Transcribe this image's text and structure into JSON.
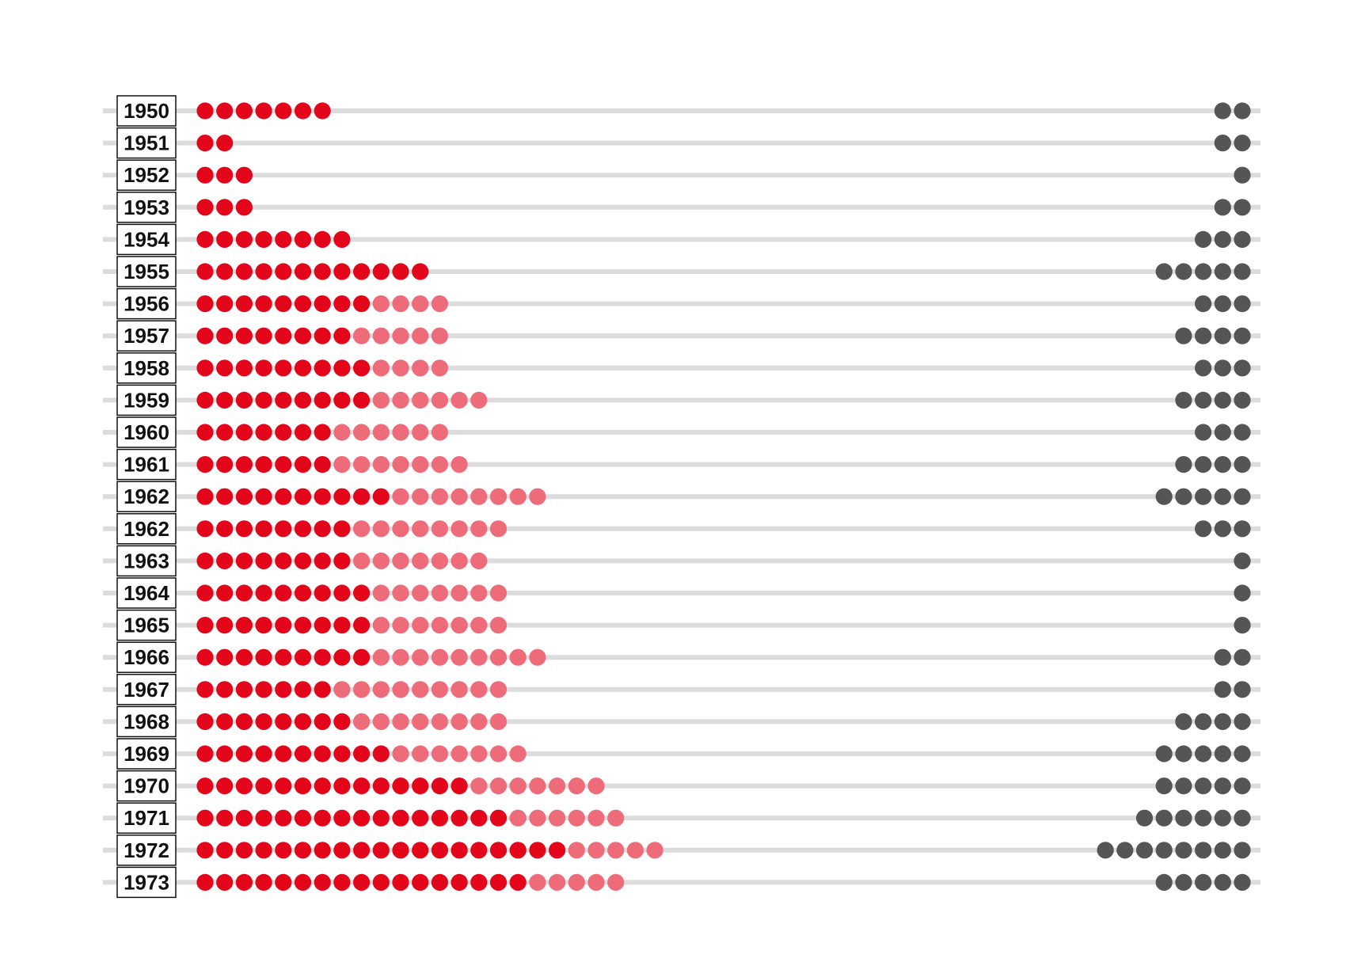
{
  "chart_data": {
    "type": "dot-strip",
    "title": "",
    "xlabel": "",
    "ylabel": "",
    "grid": false,
    "legend": "none",
    "colors": {
      "dark_red": "#e3061a",
      "light_red": "#ee6b7a",
      "gray": "#555555",
      "track": "#dcdcdc",
      "label_border": "#111111"
    },
    "rows": [
      {
        "year": "1950",
        "dark": 7,
        "light": 0,
        "gray": 2
      },
      {
        "year": "1951",
        "dark": 2,
        "light": 0,
        "gray": 2
      },
      {
        "year": "1952",
        "dark": 3,
        "light": 0,
        "gray": 1
      },
      {
        "year": "1953",
        "dark": 3,
        "light": 0,
        "gray": 2
      },
      {
        "year": "1954",
        "dark": 8,
        "light": 0,
        "gray": 3
      },
      {
        "year": "1955",
        "dark": 12,
        "light": 0,
        "gray": 5
      },
      {
        "year": "1956",
        "dark": 9,
        "light": 4,
        "gray": 3
      },
      {
        "year": "1957",
        "dark": 8,
        "light": 5,
        "gray": 4
      },
      {
        "year": "1958",
        "dark": 9,
        "light": 4,
        "gray": 3
      },
      {
        "year": "1959",
        "dark": 9,
        "light": 6,
        "gray": 4
      },
      {
        "year": "1960",
        "dark": 7,
        "light": 6,
        "gray": 3
      },
      {
        "year": "1961",
        "dark": 7,
        "light": 7,
        "gray": 4
      },
      {
        "year": "1962",
        "dark": 10,
        "light": 8,
        "gray": 5
      },
      {
        "year": "1962",
        "dark": 8,
        "light": 8,
        "gray": 3
      },
      {
        "year": "1963",
        "dark": 8,
        "light": 7,
        "gray": 1
      },
      {
        "year": "1964",
        "dark": 9,
        "light": 7,
        "gray": 1
      },
      {
        "year": "1965",
        "dark": 9,
        "light": 7,
        "gray": 1
      },
      {
        "year": "1966",
        "dark": 9,
        "light": 9,
        "gray": 2
      },
      {
        "year": "1967",
        "dark": 7,
        "light": 9,
        "gray": 2
      },
      {
        "year": "1968",
        "dark": 8,
        "light": 8,
        "gray": 4
      },
      {
        "year": "1969",
        "dark": 10,
        "light": 7,
        "gray": 5
      },
      {
        "year": "1970",
        "dark": 14,
        "light": 7,
        "gray": 5
      },
      {
        "year": "1971",
        "dark": 16,
        "light": 6,
        "gray": 6
      },
      {
        "year": "1972",
        "dark": 19,
        "light": 5,
        "gray": 8
      },
      {
        "year": "1973",
        "dark": 17,
        "light": 5,
        "gray": 5
      }
    ]
  }
}
